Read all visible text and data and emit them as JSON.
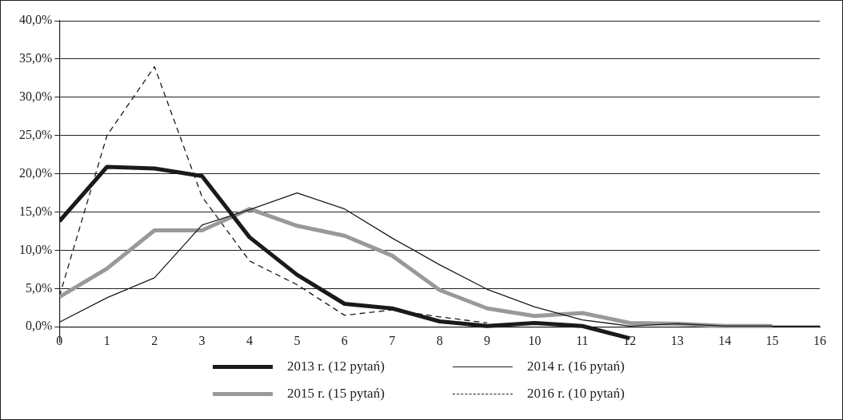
{
  "chart_data": {
    "type": "line",
    "x": [
      0,
      1,
      2,
      3,
      4,
      5,
      6,
      7,
      8,
      9,
      10,
      11,
      12,
      13,
      14,
      15,
      16
    ],
    "xlim": [
      0,
      16
    ],
    "xticks": [
      0,
      1,
      2,
      3,
      4,
      5,
      6,
      7,
      8,
      9,
      10,
      11,
      12,
      13,
      14,
      15,
      16
    ],
    "ylim": [
      -2,
      40
    ],
    "yticks": [
      {
        "value": 0,
        "label": "0,0%"
      },
      {
        "value": 5,
        "label": "5,0%"
      },
      {
        "value": 10,
        "label": "10,0%"
      },
      {
        "value": 15,
        "label": "15,0%"
      },
      {
        "value": 20,
        "label": "20,0%"
      },
      {
        "value": 25,
        "label": "25,0%"
      },
      {
        "value": 30,
        "label": "30,0%"
      },
      {
        "value": 35,
        "label": "35,0%"
      },
      {
        "value": 40,
        "label": "40,0%"
      }
    ],
    "grid": "y",
    "legend": "bottom",
    "marker": "none",
    "series": [
      {
        "name": "2013 r. (12 pytań)",
        "color": "#1a1a1a",
        "line_style": "solid",
        "values": [
          13.8,
          20.9,
          20.7,
          19.7,
          11.7,
          6.8,
          3.0,
          2.4,
          0.7,
          0.1,
          0.5,
          0.1,
          -1.5,
          null,
          null,
          null,
          null
        ]
      },
      {
        "name": "2014 r. (16 pytań)",
        "color": "#1a1a1a",
        "line_style": "solid",
        "values": [
          0.6,
          3.8,
          6.4,
          13.3,
          15.3,
          17.5,
          15.4,
          11.6,
          8.1,
          4.9,
          2.6,
          0.9,
          0.1,
          0.4,
          0.1,
          0.1,
          0.1
        ]
      },
      {
        "name": "2015 r. (15 pytań)",
        "color": "#999999",
        "line_style": "solid",
        "values": [
          3.9,
          7.6,
          12.6,
          12.6,
          15.4,
          13.2,
          11.9,
          9.3,
          4.8,
          2.4,
          1.4,
          1.8,
          0.5,
          0.4,
          0.1,
          0.1,
          null
        ]
      },
      {
        "name": "2016 r. (10 pytań)",
        "color": "#1a1a1a",
        "line_style": "dashed",
        "values": [
          4.0,
          25.0,
          34.0,
          17.0,
          8.6,
          5.5,
          1.5,
          2.2,
          1.3,
          0.5,
          null,
          null,
          null,
          null,
          null,
          null,
          null
        ]
      }
    ]
  }
}
